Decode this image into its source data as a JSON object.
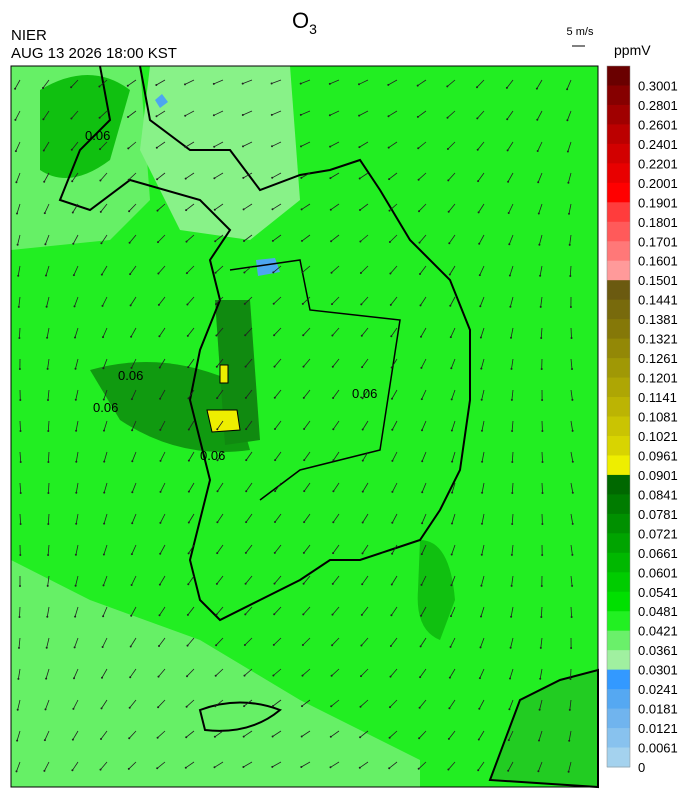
{
  "header": {
    "title": "O",
    "title_subscript": "3",
    "agency": "NIER",
    "datetime": "AUG 13 2026 18:00 KST",
    "wind_scale": "5 m/s"
  },
  "map": {
    "contour_label": "0.06"
  },
  "colorbar": {
    "unit": "ppmV",
    "levels": [
      {
        "label": "0.3001",
        "color": "#6a0000"
      },
      {
        "label": "0.2801",
        "color": "#860000"
      },
      {
        "label": "0.2601",
        "color": "#a00000"
      },
      {
        "label": "0.2401",
        "color": "#bb0000"
      },
      {
        "label": "0.2201",
        "color": "#d20000"
      },
      {
        "label": "0.2001",
        "color": "#e80000"
      },
      {
        "label": "0.1901",
        "color": "#ff0000"
      },
      {
        "label": "0.1801",
        "color": "#ff3c3c"
      },
      {
        "label": "0.1701",
        "color": "#ff5a5a"
      },
      {
        "label": "0.1601",
        "color": "#ff7878"
      },
      {
        "label": "0.1501",
        "color": "#ff9a9a"
      },
      {
        "label": "0.1441",
        "color": "#6b5a10"
      },
      {
        "label": "0.1381",
        "color": "#786a0c"
      },
      {
        "label": "0.1321",
        "color": "#857808"
      },
      {
        "label": "0.1261",
        "color": "#938806"
      },
      {
        "label": "0.1201",
        "color": "#a09805"
      },
      {
        "label": "0.1141",
        "color": "#aea604"
      },
      {
        "label": "0.1081",
        "color": "#bcb403"
      },
      {
        "label": "0.1021",
        "color": "#cac402"
      },
      {
        "label": "0.0961",
        "color": "#d8d401"
      },
      {
        "label": "0.0901",
        "color": "#eeee00"
      },
      {
        "label": "0.0841",
        "color": "#006800"
      },
      {
        "label": "0.0781",
        "color": "#007c00"
      },
      {
        "label": "0.0721",
        "color": "#009000"
      },
      {
        "label": "0.0661",
        "color": "#00a400"
      },
      {
        "label": "0.0601",
        "color": "#00b800"
      },
      {
        "label": "0.0541",
        "color": "#00cc00"
      },
      {
        "label": "0.0481",
        "color": "#00e000"
      },
      {
        "label": "0.0421",
        "color": "#22f022"
      },
      {
        "label": "0.0361",
        "color": "#6af06a"
      },
      {
        "label": "0.0301",
        "color": "#a0f0a0"
      },
      {
        "label": "0.0241",
        "color": "#3399ff"
      },
      {
        "label": "0.0181",
        "color": "#55a8f2"
      },
      {
        "label": "0.0121",
        "color": "#70b4ee"
      },
      {
        "label": "0.0061",
        "color": "#88c2ee"
      },
      {
        "label": "0",
        "color": "#a4d2ee"
      }
    ]
  }
}
